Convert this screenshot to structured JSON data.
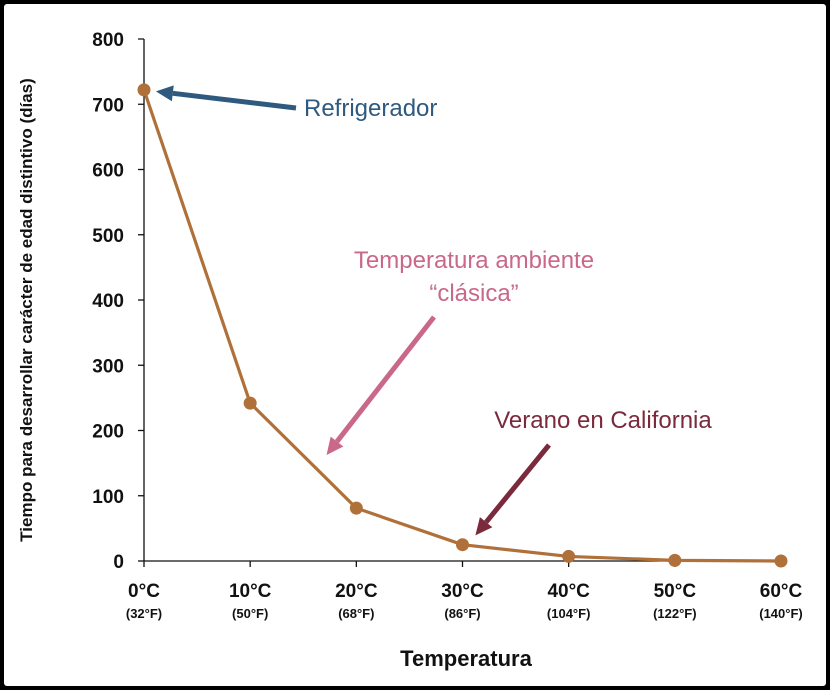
{
  "chart_data": {
    "type": "line",
    "title": "",
    "xlabel": "Temperatura",
    "ylabel": "Tiempo para desarrollar carácter de edad distintivo (días)",
    "ylim": [
      0,
      800
    ],
    "yticks": [
      0,
      100,
      200,
      300,
      400,
      500,
      600,
      700,
      800
    ],
    "grid": false,
    "x": [
      0,
      10,
      20,
      30,
      40,
      50,
      60
    ],
    "categories": [
      "0°C",
      "10°C",
      "20°C",
      "30°C",
      "40°C",
      "50°C",
      "60°C"
    ],
    "categories_secondary": [
      "(32°F)",
      "(50°F)",
      "(68°F)",
      "(86°F)",
      "(104°F)",
      "(122°F)",
      "(140°F)"
    ],
    "series": [
      {
        "values": [
          722,
          242,
          81,
          25,
          7,
          1,
          0
        ],
        "color": "#b0703a"
      }
    ],
    "annotations": [
      {
        "lines": [
          "Refrigerador"
        ],
        "target": [
          0,
          722
        ],
        "color": "#2e5a80"
      },
      {
        "lines": [
          "Temperatura ambiente",
          "“clásica”"
        ],
        "target": [
          16.5,
          148
        ],
        "color": "#c9688a"
      },
      {
        "lines": [
          "Verano en California"
        ],
        "target": [
          30.5,
          25
        ],
        "color": "#7a2a3c"
      }
    ]
  }
}
